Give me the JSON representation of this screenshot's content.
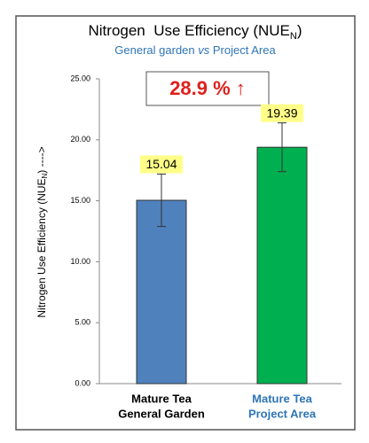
{
  "chart_data": {
    "type": "bar",
    "title": [
      "Nitrogen  Use Efficiency (NUE",
      "N",
      ")"
    ],
    "subtitle": [
      "General garden ",
      "vs",
      " Project Area"
    ],
    "y_label": [
      "Nitrogen Use Efficiency (NUE",
      "N",
      ") ---->"
    ],
    "annotation": "28.9 % ↑",
    "categories": [
      [
        "Mature Tea",
        "General Garden"
      ],
      [
        "Mature Tea",
        "Project Area"
      ]
    ],
    "category_colors": [
      "#000000",
      "#2e75b6"
    ],
    "series": [
      {
        "colors": [
          "#4f81bd",
          "#00b050"
        ],
        "values": [
          15.04,
          19.39
        ],
        "errors": [
          2.15,
          2.0
        ]
      }
    ],
    "ylim": [
      0,
      25
    ],
    "yticks": [
      {
        "value": 0,
        "label": "0.00"
      },
      {
        "value": 5,
        "label": "5.00"
      },
      {
        "value": 10,
        "label": "10.00"
      },
      {
        "value": 15,
        "label": "15.00"
      },
      {
        "value": 20,
        "label": "20.00"
      },
      {
        "value": 25,
        "label": "25.00"
      }
    ],
    "grid": false
  }
}
